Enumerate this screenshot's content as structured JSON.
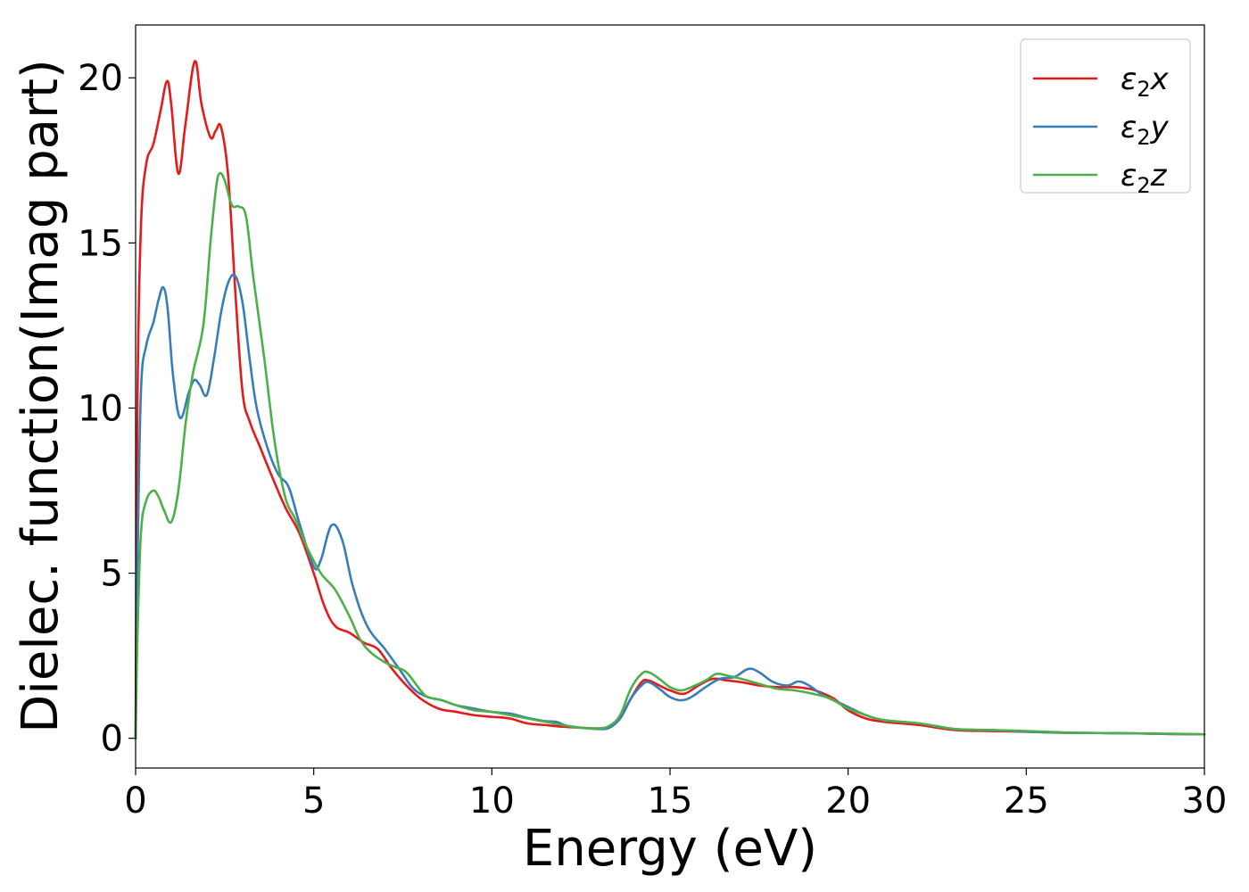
{
  "chart_data": {
    "type": "line",
    "xlabel": "Energy (eV)",
    "ylabel": "Dielec. function(Imag part)",
    "xlim": [
      0,
      30
    ],
    "ylim": [
      -0.9,
      21.6
    ],
    "xticks": [
      0,
      5,
      10,
      15,
      20,
      25,
      30
    ],
    "yticks": [
      0,
      5,
      10,
      15,
      20
    ],
    "legend_position": "top-right",
    "grid": false,
    "series": [
      {
        "name": "ε2x",
        "legend_base": "ε",
        "legend_sub": "2",
        "legend_suffix": "x",
        "color": "#e41a1c",
        "x": [
          0,
          0.05,
          0.15,
          0.3,
          0.5,
          0.7,
          0.88,
          1.0,
          1.2,
          1.4,
          1.66,
          1.85,
          2.1,
          2.25,
          2.4,
          2.6,
          2.8,
          3.0,
          3.2,
          3.5,
          3.8,
          4.2,
          4.6,
          5.0,
          5.3,
          5.6,
          6.0,
          6.4,
          6.8,
          7.2,
          7.6,
          8.0,
          8.5,
          9.0,
          9.5,
          10.0,
          10.5,
          11.0,
          11.5,
          12.0,
          12.5,
          13.0,
          13.3,
          13.6,
          13.9,
          14.2,
          14.4,
          14.7,
          15.0,
          15.4,
          15.8,
          16.2,
          16.6,
          17.0,
          17.5,
          18.0,
          18.5,
          18.9,
          19.2,
          19.6,
          20.0,
          20.5,
          21.0,
          22.0,
          23.0,
          24.0,
          25.0,
          26.0,
          27.0,
          28.0,
          29.0,
          30.0
        ],
        "values": [
          0.0,
          10.0,
          15.5,
          17.4,
          18.0,
          19.0,
          19.9,
          19.2,
          17.1,
          18.6,
          20.5,
          19.2,
          18.2,
          18.4,
          18.5,
          17.0,
          13.5,
          10.5,
          9.6,
          8.8,
          8.0,
          7.0,
          6.2,
          5.0,
          4.0,
          3.4,
          3.2,
          2.9,
          2.7,
          2.1,
          1.6,
          1.2,
          0.9,
          0.8,
          0.7,
          0.65,
          0.6,
          0.45,
          0.4,
          0.35,
          0.32,
          0.3,
          0.35,
          0.6,
          1.2,
          1.7,
          1.75,
          1.6,
          1.45,
          1.35,
          1.6,
          1.8,
          1.75,
          1.7,
          1.6,
          1.55,
          1.55,
          1.5,
          1.4,
          1.2,
          0.85,
          0.6,
          0.5,
          0.4,
          0.25,
          0.22,
          0.2,
          0.17,
          0.16,
          0.15,
          0.13,
          0.12
        ]
      },
      {
        "name": "ε2y",
        "legend_base": "ε",
        "legend_sub": "2",
        "legend_suffix": "y",
        "color": "#377eb8",
        "x": [
          0,
          0.05,
          0.15,
          0.3,
          0.5,
          0.65,
          0.78,
          0.9,
          1.05,
          1.25,
          1.5,
          1.65,
          1.8,
          2.0,
          2.2,
          2.4,
          2.6,
          2.8,
          3.0,
          3.2,
          3.4,
          3.7,
          4.0,
          4.3,
          4.6,
          5.0,
          5.2,
          5.5,
          5.8,
          6.1,
          6.5,
          7.0,
          7.4,
          7.8,
          8.2,
          8.6,
          9.0,
          9.5,
          10.0,
          10.5,
          11.0,
          11.5,
          11.8,
          12.1,
          12.5,
          13.0,
          13.3,
          13.6,
          13.9,
          14.2,
          14.4,
          14.7,
          15.0,
          15.3,
          15.6,
          16.0,
          16.4,
          16.8,
          17.2,
          17.5,
          17.9,
          18.3,
          18.6,
          18.9,
          19.3,
          19.7,
          20.0,
          20.5,
          21.0,
          22.0,
          23.0,
          24.0,
          25.0,
          26.0,
          27.0,
          28.0,
          29.0,
          30.0
        ],
        "values": [
          0.0,
          5.0,
          10.5,
          11.9,
          12.6,
          13.3,
          13.65,
          13.0,
          11.0,
          9.7,
          10.5,
          10.85,
          10.7,
          10.4,
          11.5,
          12.9,
          13.8,
          14.0,
          13.2,
          11.5,
          10.0,
          8.8,
          8.0,
          7.6,
          6.5,
          5.2,
          5.4,
          6.45,
          6.0,
          4.6,
          3.4,
          2.7,
          2.1,
          1.5,
          1.25,
          1.15,
          1.0,
          0.9,
          0.8,
          0.75,
          0.62,
          0.52,
          0.5,
          0.38,
          0.32,
          0.28,
          0.32,
          0.6,
          1.2,
          1.6,
          1.7,
          1.5,
          1.25,
          1.15,
          1.25,
          1.55,
          1.8,
          1.85,
          2.1,
          2.0,
          1.7,
          1.6,
          1.72,
          1.6,
          1.3,
          1.1,
          0.95,
          0.7,
          0.55,
          0.45,
          0.28,
          0.25,
          0.2,
          0.17,
          0.16,
          0.15,
          0.13,
          0.12
        ]
      },
      {
        "name": "ε2z",
        "legend_base": "ε",
        "legend_sub": "2",
        "legend_suffix": "z",
        "color": "#4daf4a",
        "x": [
          0,
          0.05,
          0.15,
          0.3,
          0.5,
          0.65,
          0.8,
          1.0,
          1.2,
          1.4,
          1.6,
          1.9,
          2.1,
          2.25,
          2.35,
          2.5,
          2.7,
          2.9,
          3.1,
          3.3,
          3.6,
          3.9,
          4.2,
          4.5,
          4.8,
          5.2,
          5.6,
          6.0,
          6.3,
          6.6,
          7.0,
          7.3,
          7.6,
          8.0,
          8.2,
          8.6,
          9.0,
          9.5,
          10.0,
          10.5,
          11.0,
          11.5,
          12.0,
          12.5,
          13.0,
          13.3,
          13.6,
          13.9,
          14.2,
          14.4,
          14.7,
          15.0,
          15.3,
          15.6,
          16.0,
          16.3,
          16.6,
          17.0,
          17.5,
          18.0,
          18.5,
          19.0,
          19.5,
          20.0,
          20.5,
          21.0,
          22.0,
          23.0,
          24.0,
          25.0,
          26.0,
          27.0,
          28.0,
          29.0,
          30.0
        ],
        "values": [
          0.0,
          3.0,
          6.2,
          7.2,
          7.5,
          7.3,
          6.9,
          6.55,
          7.5,
          9.5,
          11.0,
          12.5,
          15.0,
          16.6,
          17.1,
          16.9,
          16.15,
          16.1,
          15.8,
          14.0,
          11.6,
          9.0,
          7.3,
          6.6,
          5.8,
          5.0,
          4.5,
          3.7,
          3.0,
          2.6,
          2.3,
          2.15,
          2.0,
          1.45,
          1.25,
          1.15,
          1.0,
          0.85,
          0.8,
          0.7,
          0.6,
          0.5,
          0.4,
          0.32,
          0.3,
          0.38,
          0.7,
          1.5,
          1.95,
          2.0,
          1.8,
          1.55,
          1.45,
          1.55,
          1.75,
          1.95,
          1.9,
          1.8,
          1.65,
          1.5,
          1.45,
          1.35,
          1.2,
          0.9,
          0.7,
          0.55,
          0.45,
          0.28,
          0.25,
          0.22,
          0.18,
          0.16,
          0.15,
          0.14,
          0.12
        ]
      }
    ]
  }
}
